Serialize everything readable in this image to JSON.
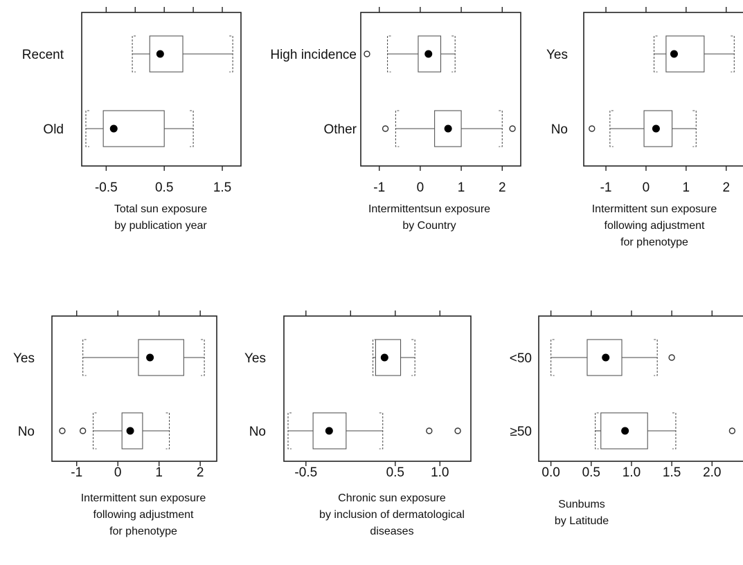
{
  "chart_data": [
    {
      "type": "boxplot",
      "caption": [
        "Total sun exposure",
        "by publication year"
      ],
      "xlim": [
        -0.85,
        1.75
      ],
      "ticks": [
        -0.5,
        0.5,
        1.5
      ],
      "tick_labels": [
        "-0.5",
        "0.5",
        "1.5"
      ],
      "top_ticks": [
        -0.5,
        0.0,
        0.5,
        1.0,
        1.5
      ],
      "categories": [
        {
          "label": "Recent",
          "whisker_low": -0.05,
          "q1": 0.25,
          "median": 0.43,
          "q3": 0.82,
          "whisker_high": 1.68,
          "outliers": []
        },
        {
          "label": "Old",
          "whisker_low": -0.85,
          "q1": -0.55,
          "median": -0.37,
          "q3": 0.5,
          "whisker_high": 1.0,
          "outliers": []
        }
      ]
    },
    {
      "type": "boxplot",
      "caption": [
        "Intermittentsun exposure",
        "by Country"
      ],
      "xlim": [
        -1.35,
        2.35
      ],
      "ticks": [
        -1,
        0,
        1,
        2
      ],
      "tick_labels": [
        "-1",
        "0",
        "1",
        "2"
      ],
      "top_ticks": [
        -1,
        0,
        1,
        2
      ],
      "categories": [
        {
          "label": "High incidence",
          "whisker_low": -0.8,
          "q1": -0.05,
          "median": 0.2,
          "q3": 0.5,
          "whisker_high": 0.85,
          "outliers": [
            -1.3
          ]
        },
        {
          "label": "Other",
          "whisker_low": -0.6,
          "q1": 0.35,
          "median": 0.68,
          "q3": 1.0,
          "whisker_high": 2.0,
          "outliers": [
            -0.85,
            2.25
          ]
        }
      ]
    },
    {
      "type": "boxplot",
      "caption": [
        "Intermittent sun exposure",
        "following adjustment",
        "for phenotype"
      ],
      "xlim": [
        -1.45,
        2.35
      ],
      "ticks": [
        -1,
        0,
        1,
        2
      ],
      "tick_labels": [
        "-1",
        "0",
        "1",
        "2"
      ],
      "top_ticks": [
        -1,
        0,
        1,
        2
      ],
      "categories": [
        {
          "label": "Yes",
          "whisker_low": 0.2,
          "q1": 0.5,
          "median": 0.7,
          "q3": 1.45,
          "whisker_high": 2.2,
          "outliers": []
        },
        {
          "label": "No",
          "whisker_low": -0.9,
          "q1": -0.05,
          "median": 0.25,
          "q3": 0.65,
          "whisker_high": 1.25,
          "outliers": [
            -1.35
          ]
        }
      ]
    },
    {
      "type": "boxplot",
      "caption": [
        "Intermittent sun exposure",
        "following adjustment",
        "for phenotype"
      ],
      "xlim": [
        -1.5,
        2.3
      ],
      "ticks": [
        -1,
        0,
        1,
        2
      ],
      "tick_labels": [
        "-1",
        "0",
        "1",
        "2"
      ],
      "top_ticks": [
        -1,
        0,
        1,
        2
      ],
      "categories": [
        {
          "label": "Yes",
          "whisker_low": -0.85,
          "q1": 0.5,
          "median": 0.78,
          "q3": 1.6,
          "whisker_high": 2.1,
          "outliers": []
        },
        {
          "label": "No",
          "whisker_low": -0.6,
          "q1": 0.1,
          "median": 0.3,
          "q3": 0.6,
          "whisker_high": 1.25,
          "outliers": [
            -1.35,
            -0.85
          ]
        }
      ]
    },
    {
      "type": "boxplot",
      "caption": [
        "Chronic sun exposure",
        "by inclusion of dermatological",
        "diseases"
      ],
      "xlim": [
        -0.7,
        1.3
      ],
      "ticks": [
        -0.5,
        0.5,
        1.0
      ],
      "tick_labels": [
        "-0.5",
        "0.5",
        "1.0"
      ],
      "top_ticks": [
        -0.5,
        0.0,
        0.5,
        1.0
      ],
      "categories": [
        {
          "label": "Yes",
          "whisker_low": 0.25,
          "q1": 0.28,
          "median": 0.38,
          "q3": 0.56,
          "whisker_high": 0.72,
          "outliers": []
        },
        {
          "label": "No",
          "whisker_low": -0.7,
          "q1": -0.42,
          "median": -0.24,
          "q3": -0.05,
          "whisker_high": 0.36,
          "outliers": [
            0.88,
            1.2
          ]
        }
      ]
    },
    {
      "type": "boxplot",
      "caption": [
        "Sunbums",
        "by Latitude"
      ],
      "xlim": [
        -0.1,
        2.35
      ],
      "ticks": [
        0.0,
        0.5,
        1.0,
        1.5,
        2.0
      ],
      "tick_labels": [
        "0.0",
        "0.5",
        "1.0",
        "1.5",
        "2.0"
      ],
      "top_ticks": [
        0.0,
        0.5,
        1.0,
        1.5,
        2.0
      ],
      "categories": [
        {
          "label": "<50",
          "whisker_low": 0.0,
          "q1": 0.45,
          "median": 0.68,
          "q3": 0.88,
          "whisker_high": 1.32,
          "outliers": [
            1.5
          ]
        },
        {
          "label": "≥50",
          "whisker_low": 0.55,
          "q1": 0.62,
          "median": 0.92,
          "q3": 1.2,
          "whisker_high": 1.55,
          "outliers": [
            2.25
          ]
        }
      ]
    }
  ]
}
